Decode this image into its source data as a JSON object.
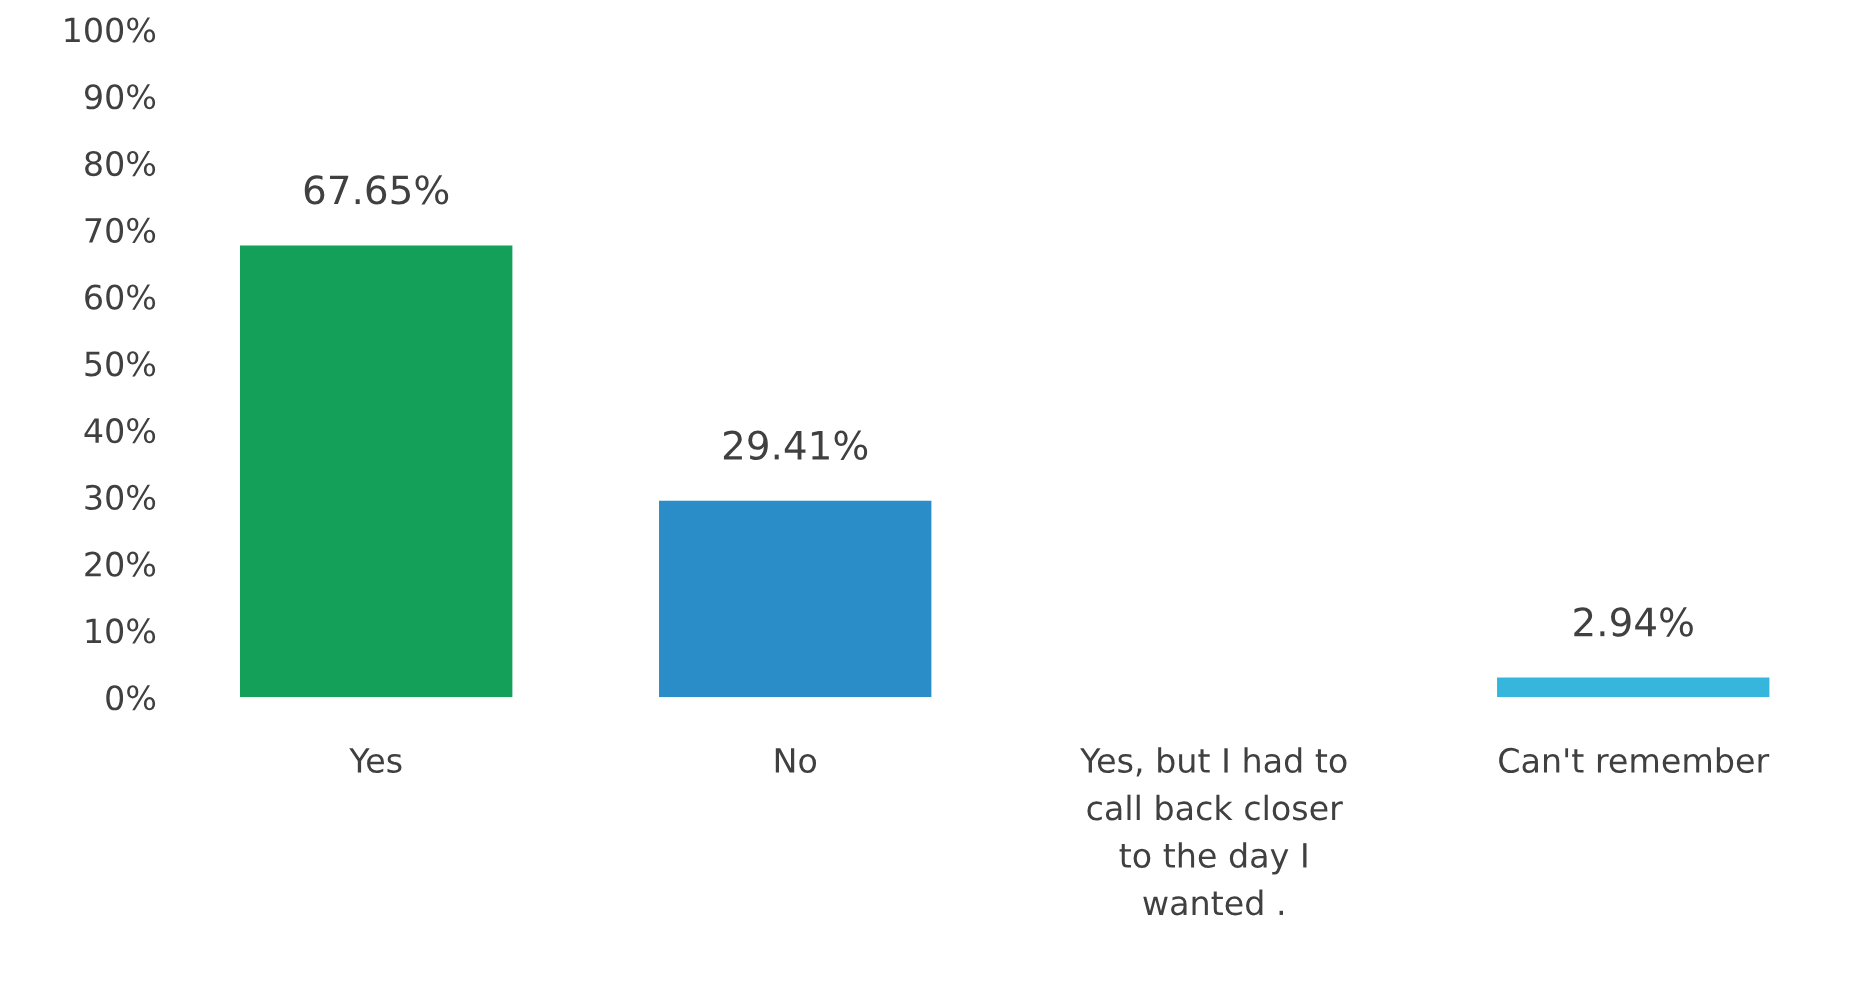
{
  "chart_data": {
    "type": "bar",
    "categories": [
      "Yes",
      "No",
      "Yes, but I had to call back closer to the day I wanted .",
      "Can't remember"
    ],
    "values": [
      67.65,
      29.41,
      0,
      2.94
    ],
    "value_labels": [
      "67.65%",
      "29.41%",
      null,
      "2.94%"
    ],
    "colors": [
      "#15a05a",
      "#2a8dc8",
      "#2a8dc8",
      "#36b6dc"
    ],
    "ylim": [
      0,
      100
    ],
    "yticks": [
      {
        "value": 0,
        "label": "0%"
      },
      {
        "value": 10,
        "label": "10%"
      },
      {
        "value": 20,
        "label": "20%"
      },
      {
        "value": 30,
        "label": "30%"
      },
      {
        "value": 40,
        "label": "40%"
      },
      {
        "value": 50,
        "label": "50%"
      },
      {
        "value": 60,
        "label": "60%"
      },
      {
        "value": 70,
        "label": "70%"
      },
      {
        "value": 80,
        "label": "80%"
      },
      {
        "value": 90,
        "label": "90%"
      },
      {
        "value": 100,
        "label": "100%"
      }
    ],
    "grid": false,
    "legend": false
  }
}
